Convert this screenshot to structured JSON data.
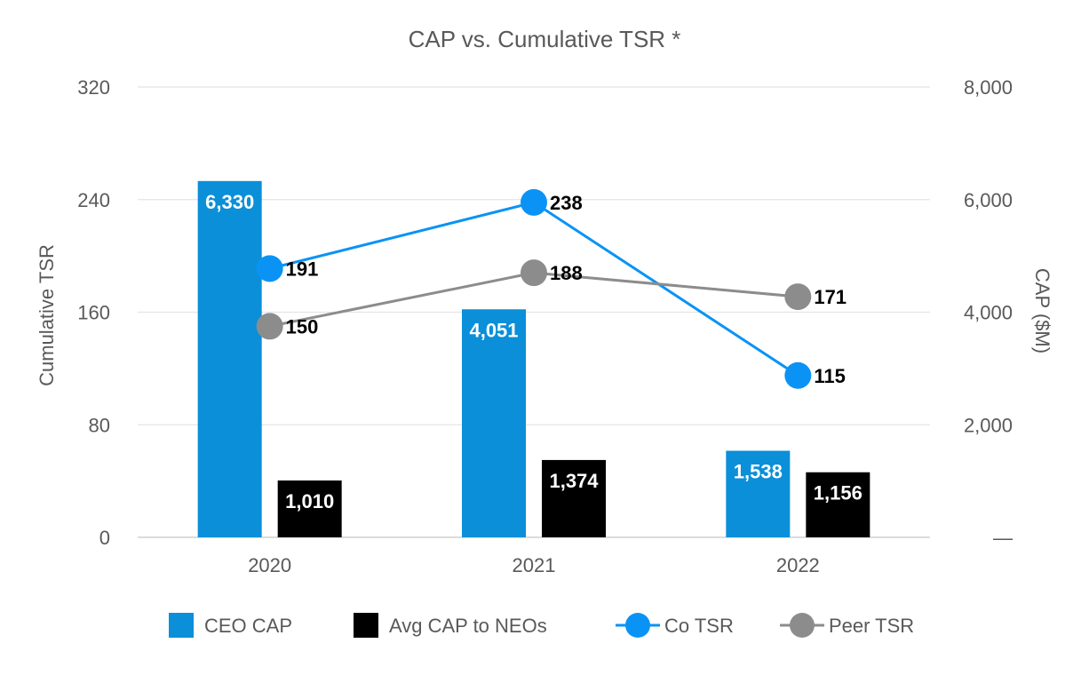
{
  "chart_data": {
    "type": "bar",
    "title": "CAP vs. Cumulative TSR *",
    "categories": [
      "2020",
      "2021",
      "2022"
    ],
    "y_left": {
      "label": "Cumulative TSR",
      "ylim": [
        0,
        320
      ],
      "ticks": [
        "0",
        "80",
        "160",
        "240",
        "320"
      ],
      "tick_values": [
        0,
        80,
        160,
        240,
        320
      ]
    },
    "y_right": {
      "label": "CAP ($M)",
      "ylim": [
        0,
        8000
      ],
      "ticks": [
        "—",
        "2,000",
        "4,000",
        "6,000",
        "8,000"
      ],
      "tick_values": [
        0,
        2000,
        4000,
        6000,
        8000
      ]
    },
    "grid": true,
    "legend_position": "bottom",
    "series": [
      {
        "name": "CEO CAP",
        "kind": "bar",
        "axis": "right",
        "color": "#0a8fd8",
        "values": [
          6330,
          4051,
          1538
        ],
        "labels": [
          "6,330",
          "4,051",
          "1,538"
        ]
      },
      {
        "name": "Avg CAP to NEOs",
        "kind": "bar",
        "axis": "right",
        "color": "#000000",
        "values": [
          1010,
          1374,
          1156
        ],
        "labels": [
          "1,010",
          "1,374",
          "1,156"
        ]
      },
      {
        "name": "Co TSR",
        "kind": "line",
        "axis": "left",
        "color": "#0a93f5",
        "values": [
          191,
          238,
          115
        ],
        "labels": [
          "191",
          "238",
          "115"
        ]
      },
      {
        "name": "Peer TSR",
        "kind": "line",
        "axis": "left",
        "color": "#8c8c8c",
        "values": [
          150,
          188,
          171
        ],
        "labels": [
          "150",
          "188",
          "171"
        ]
      }
    ]
  }
}
